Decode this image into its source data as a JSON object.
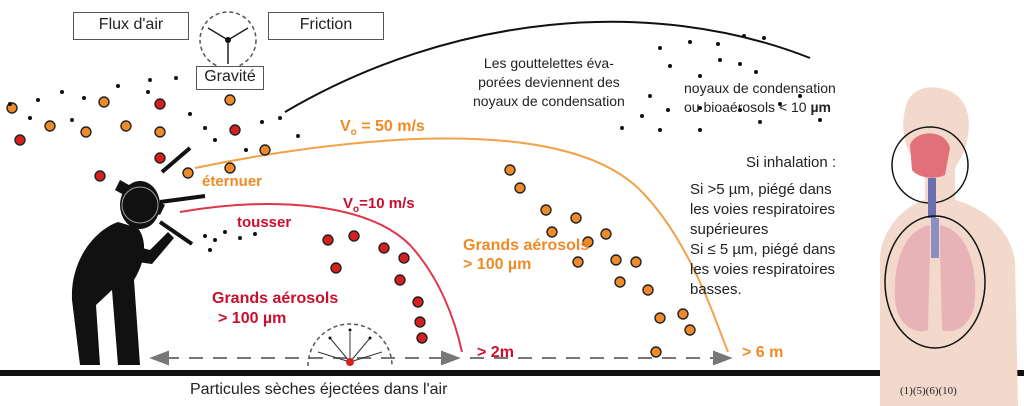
{
  "forces": {
    "air_flow": "Flux d'air",
    "friction": "Friction",
    "gravity": "Gravité"
  },
  "sneeze": {
    "label": "éternuer",
    "velocity_prefix": "V",
    "velocity_sub": "o",
    "velocity_value": " = 50 m/s",
    "aerosol_line1": "Grands aérosols",
    "aerosol_line2": "> 100 µm",
    "distance": "> 6 m"
  },
  "cough": {
    "label": "tousser",
    "velocity_prefix": "V",
    "velocity_sub": "o",
    "velocity_value": "=10 m/s",
    "aerosol_line1": "Grands aérosols",
    "aerosol_line2": "> 100 µm",
    "distance": "> 2m"
  },
  "evaporation": {
    "line1": "Les gouttelettes éva-",
    "line2": "porées deviennent des",
    "line3": "noyaux de condensation"
  },
  "nuclei": {
    "line1": "noyaux  de  condensation",
    "line2_prefix": "ou bioaérosols  < 10 ",
    "line2_unit": "µm"
  },
  "inhalation": {
    "title": "Si inhalation :",
    "p1_line1": "Si >5 µm, piégé dans",
    "p1_line2": "les voies respiratoires",
    "p1_line3": "supérieures",
    "p2_line1": "Si ≤ 5 µm, piégé dans",
    "p2_line2": "les voies respiratoires",
    "p2_line3": "basses."
  },
  "bottom_caption": "Particules sèches éjectées dans l'air",
  "references": "(1)(5)(6)(10)",
  "colors": {
    "sneeze": "#f08a24",
    "cough": "#c8102e",
    "droplet_red": "#d62020",
    "droplet_orange": "#ef8a2a",
    "ground": "#111111"
  }
}
